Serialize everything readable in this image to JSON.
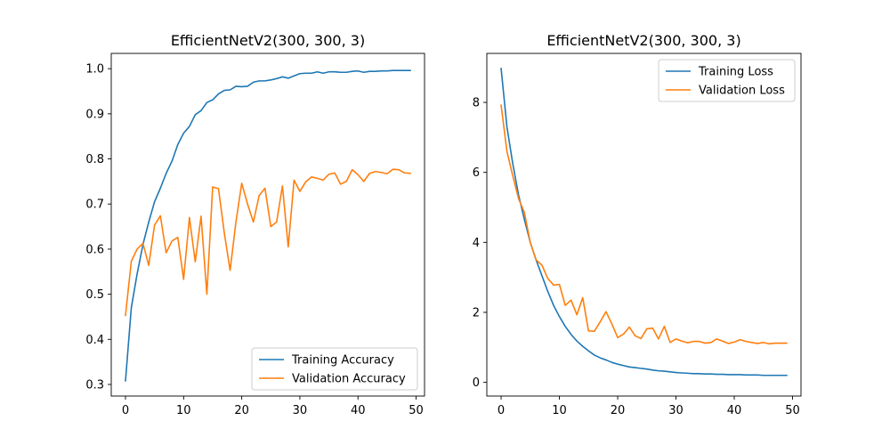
{
  "chart_data": [
    {
      "type": "line",
      "title": "EfficientNetV2(300, 300, 3)",
      "xlabel": "",
      "ylabel": "",
      "xlim": [
        -2.45,
        51.45
      ],
      "ylim": [
        0.2743,
        1.0339
      ],
      "xticks": [
        0,
        10,
        20,
        30,
        40,
        50
      ],
      "yticks": [
        0.3,
        0.4,
        0.5,
        0.6,
        0.7,
        0.8,
        0.9,
        1.0
      ],
      "ytick_labels": [
        "0.3",
        "0.4",
        "0.5",
        "0.6",
        "0.7",
        "0.8",
        "0.9",
        "1.0"
      ],
      "legend": "lower-right",
      "grid": false,
      "x": [
        0,
        1,
        2,
        3,
        4,
        5,
        6,
        7,
        8,
        9,
        10,
        11,
        12,
        13,
        14,
        15,
        16,
        17,
        18,
        19,
        20,
        21,
        22,
        23,
        24,
        25,
        26,
        27,
        28,
        29,
        30,
        31,
        32,
        33,
        34,
        35,
        36,
        37,
        38,
        39,
        40,
        41,
        42,
        43,
        44,
        45,
        46,
        47,
        48,
        49
      ],
      "series": [
        {
          "name": "Training Accuracy",
          "color": "#1f77b4",
          "values": [
            0.308,
            0.47,
            0.545,
            0.61,
            0.66,
            0.705,
            0.735,
            0.768,
            0.795,
            0.832,
            0.857,
            0.872,
            0.898,
            0.907,
            0.925,
            0.931,
            0.944,
            0.952,
            0.953,
            0.961,
            0.96,
            0.961,
            0.97,
            0.973,
            0.973,
            0.975,
            0.978,
            0.982,
            0.979,
            0.984,
            0.989,
            0.99,
            0.99,
            0.993,
            0.99,
            0.993,
            0.993,
            0.992,
            0.992,
            0.994,
            0.995,
            0.992,
            0.994,
            0.994,
            0.995,
            0.995,
            0.996,
            0.996,
            0.996,
            0.996
          ]
        },
        {
          "name": "Validation Accuracy",
          "color": "#ff7f0e",
          "values": [
            0.453,
            0.573,
            0.6,
            0.613,
            0.564,
            0.653,
            0.674,
            0.592,
            0.618,
            0.626,
            0.533,
            0.67,
            0.572,
            0.673,
            0.5,
            0.738,
            0.734,
            0.636,
            0.553,
            0.66,
            0.746,
            0.7,
            0.66,
            0.719,
            0.735,
            0.65,
            0.66,
            0.74,
            0.605,
            0.753,
            0.728,
            0.749,
            0.76,
            0.757,
            0.753,
            0.766,
            0.769,
            0.744,
            0.75,
            0.776,
            0.765,
            0.75,
            0.768,
            0.772,
            0.77,
            0.767,
            0.777,
            0.776,
            0.769,
            0.768
          ]
        }
      ]
    },
    {
      "type": "line",
      "title": "EfficientNetV2(300, 300, 3)",
      "xlabel": "",
      "ylabel": "",
      "xlim": [
        -2.45,
        51.45
      ],
      "ylim": [
        -0.3915,
        9.4
      ],
      "xticks": [
        0,
        10,
        20,
        30,
        40,
        50
      ],
      "yticks": [
        0,
        2,
        4,
        6,
        8
      ],
      "ytick_labels": [
        "0",
        "2",
        "4",
        "6",
        "8"
      ],
      "legend": "top-right",
      "grid": false,
      "x": [
        0,
        1,
        2,
        3,
        4,
        5,
        6,
        7,
        8,
        9,
        10,
        11,
        12,
        13,
        14,
        15,
        16,
        17,
        18,
        19,
        20,
        21,
        22,
        23,
        24,
        25,
        26,
        27,
        28,
        29,
        30,
        31,
        32,
        33,
        34,
        35,
        36,
        37,
        38,
        39,
        40,
        41,
        42,
        43,
        44,
        45,
        46,
        47,
        48,
        49
      ],
      "series": [
        {
          "name": "Training Loss",
          "color": "#1f77b4",
          "values": [
            8.97,
            7.3,
            6.25,
            5.35,
            4.65,
            4.0,
            3.5,
            3.05,
            2.6,
            2.2,
            1.88,
            1.6,
            1.37,
            1.18,
            1.03,
            0.9,
            0.78,
            0.7,
            0.64,
            0.57,
            0.52,
            0.48,
            0.44,
            0.42,
            0.4,
            0.38,
            0.35,
            0.33,
            0.32,
            0.3,
            0.28,
            0.27,
            0.26,
            0.25,
            0.25,
            0.24,
            0.24,
            0.23,
            0.23,
            0.22,
            0.22,
            0.22,
            0.21,
            0.21,
            0.21,
            0.2,
            0.2,
            0.2,
            0.2,
            0.2
          ]
        },
        {
          "name": "Validation Loss",
          "color": "#ff7f0e",
          "values": [
            7.92,
            6.6,
            5.9,
            5.25,
            4.85,
            4.0,
            3.5,
            3.35,
            2.97,
            2.78,
            2.8,
            2.2,
            2.35,
            1.93,
            2.42,
            1.47,
            1.46,
            1.73,
            2.02,
            1.67,
            1.28,
            1.38,
            1.58,
            1.33,
            1.25,
            1.53,
            1.55,
            1.24,
            1.6,
            1.14,
            1.24,
            1.18,
            1.13,
            1.17,
            1.17,
            1.12,
            1.14,
            1.24,
            1.18,
            1.11,
            1.15,
            1.22,
            1.17,
            1.14,
            1.11,
            1.14,
            1.1,
            1.12,
            1.12,
            1.12
          ]
        }
      ]
    }
  ]
}
